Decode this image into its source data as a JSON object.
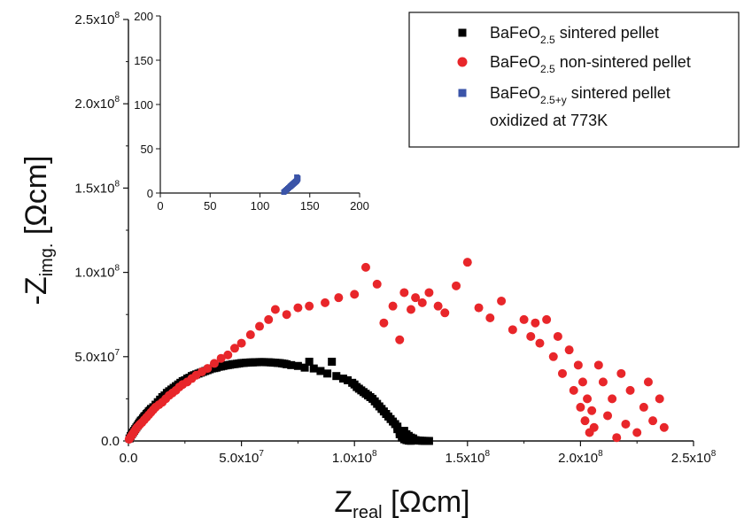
{
  "chart_data": [
    {
      "type": "scatter",
      "title": "",
      "xlabel": "Z_real [Ωcm]",
      "ylabel": "-Z_img. [Ωcm]",
      "xlabel_parts": {
        "main": "Z",
        "sub": "real",
        "unit": " [Ωcm]"
      },
      "ylabel_parts": {
        "main": "-Z",
        "sub": "img.",
        "unit": " [Ωcm]"
      },
      "xlim": [
        0,
        250000000
      ],
      "ylim": [
        0,
        250000000
      ],
      "x_ticks": [
        0,
        50000000,
        100000000,
        150000000,
        200000000,
        250000000
      ],
      "y_ticks": [
        0,
        50000000,
        100000000,
        150000000,
        200000000,
        250000000
      ],
      "x_tick_labels": [
        {
          "mant": "0.0",
          "exp": ""
        },
        {
          "mant": "5.0x10",
          "exp": "7"
        },
        {
          "mant": "1.0x10",
          "exp": "8"
        },
        {
          "mant": "1.5x10",
          "exp": "8"
        },
        {
          "mant": "2.0x10",
          "exp": "8"
        },
        {
          "mant": "2.5x10",
          "exp": "8"
        }
      ],
      "y_tick_labels": [
        {
          "mant": "0.0",
          "exp": ""
        },
        {
          "mant": "5.0x10",
          "exp": "7"
        },
        {
          "mant": "1.0x10",
          "exp": "8"
        },
        {
          "mant": "1.5x10",
          "exp": "8"
        },
        {
          "mant": "2.0x10",
          "exp": "8"
        },
        {
          "mant": "2.5x10",
          "exp": "8"
        }
      ],
      "grid": false,
      "legend_position": "top-right",
      "legend": [
        {
          "series": "sintered",
          "pre": "BaFeO",
          "sub": "2.5",
          "post": " sintered pellet",
          "line2": ""
        },
        {
          "series": "non_sintered",
          "pre": "BaFeO",
          "sub": "2.5",
          "post": " non-sintered pellet",
          "line2": ""
        },
        {
          "series": "oxidized",
          "pre": "BaFeO",
          "sub": "2.5+y",
          "post": " sintered pellet",
          "line2": "oxidized at 773K"
        }
      ],
      "series": [
        {
          "key": "sintered",
          "name": "BaFeO2.5 sintered pellet",
          "color": "#000000",
          "marker": "square",
          "x": [
            500000,
            1000000,
            1500000,
            2000000,
            2500000,
            3000000,
            3500000,
            4000000,
            4500000,
            5000000,
            5500000,
            6000000,
            6500000,
            7000000,
            7500000,
            8000000,
            8500000,
            9000000,
            9500000,
            10000000,
            11000000,
            12000000,
            13000000,
            14000000,
            15000000,
            16000000,
            17000000,
            18000000,
            19000000,
            20000000,
            21000000,
            22000000,
            23000000,
            24000000,
            25000000,
            26000000,
            27000000,
            28000000,
            29000000,
            30000000,
            31000000,
            32000000,
            33000000,
            34000000,
            35000000,
            36000000,
            37000000,
            38000000,
            39000000,
            40000000,
            41000000,
            42000000,
            43000000,
            44000000,
            45000000,
            46000000,
            47000000,
            48000000,
            49000000,
            50000000,
            51000000,
            52000000,
            53000000,
            54000000,
            55000000,
            56000000,
            57000000,
            58000000,
            59000000,
            60000000,
            61000000,
            62000000,
            63000000,
            64000000,
            65000000,
            66000000,
            67000000,
            68000000,
            69000000,
            70000000,
            72000000,
            75000000,
            78000000,
            80000000,
            82000000,
            85000000,
            88000000,
            90000000,
            92000000,
            95000000,
            97000000,
            99000000,
            100000000,
            101000000,
            102000000,
            103000000,
            104000000,
            105000000,
            106000000,
            107000000,
            108000000,
            109000000,
            110000000,
            111000000,
            112000000,
            113000000,
            114000000,
            115000000,
            116000000,
            117000000,
            118000000,
            119000000,
            119000000,
            120000000,
            120000000,
            121000000,
            121000000,
            122000000,
            122000000,
            123000000,
            123000000,
            124000000,
            124000000,
            125000000,
            125000000,
            126000000,
            126000000,
            127000000,
            128000000,
            129000000,
            130000000,
            131000000,
            132000000,
            133000000
          ],
          "y": [
            1500000,
            3000000,
            4000000,
            5000000,
            6000000,
            7000000,
            8000000,
            9000000,
            10000000,
            11000000,
            12000000,
            12500000,
            13500000,
            14500000,
            15000000,
            16000000,
            16500000,
            17500000,
            18000000,
            19000000,
            20000000,
            21500000,
            23000000,
            24500000,
            26000000,
            27000000,
            28500000,
            29500000,
            30500000,
            31500000,
            32500000,
            33500000,
            34500000,
            35500000,
            36000000,
            37000000,
            37500000,
            38500000,
            39000000,
            39500000,
            40000000,
            40500000,
            41000000,
            41500000,
            42000000,
            42500000,
            43000000,
            43200000,
            43500000,
            44000000,
            44200000,
            44500000,
            44800000,
            45000000,
            45200000,
            45500000,
            45600000,
            45800000,
            46000000,
            46200000,
            46300000,
            46400000,
            46500000,
            46600000,
            46600000,
            46700000,
            46700000,
            46800000,
            46800000,
            46800000,
            46700000,
            46700000,
            46600000,
            46500000,
            46400000,
            46300000,
            46200000,
            46000000,
            45800000,
            45500000,
            45000000,
            44500000,
            43500000,
            47000000,
            43000000,
            41500000,
            40000000,
            47000000,
            38500000,
            37000000,
            36000000,
            34500000,
            33500000,
            32000000,
            31000000,
            30000000,
            29000000,
            28000000,
            27000000,
            26000000,
            25000000,
            23500000,
            22000000,
            20500000,
            19000000,
            17500000,
            16000000,
            14500000,
            13000000,
            11500000,
            10000000,
            8500000,
            7000000,
            5500000,
            4000000,
            3000000,
            2000000,
            6000000,
            1000000,
            4000000,
            500000,
            3000000,
            200000,
            2000000,
            100000,
            1500000,
            800000,
            500000,
            300000,
            200000,
            100000,
            50000,
            30000,
            10000
          ],
          "hidden": false
        },
        {
          "key": "non_sintered",
          "name": "BaFeO2.5 non-sintered pellet",
          "color": "#e8262a",
          "marker": "circle",
          "x": [
            300000,
            800000,
            1300000,
            1800000,
            2300000,
            2800000,
            3300000,
            3800000,
            4500000,
            5200000,
            6000000,
            7000000,
            8000000,
            9000000,
            10000000,
            11000000,
            12000000,
            13500000,
            15000000,
            16500000,
            18000000,
            19500000,
            21000000,
            22500000,
            24000000,
            26000000,
            28000000,
            30000000,
            32500000,
            35000000,
            38000000,
            41000000,
            44000000,
            47000000,
            50000000,
            54000000,
            58000000,
            62000000,
            65000000,
            70000000,
            75000000,
            80000000,
            87000000,
            93000000,
            100000000,
            105000000,
            110000000,
            113000000,
            117000000,
            120000000,
            122000000,
            125000000,
            127000000,
            130000000,
            133000000,
            137000000,
            140000000,
            145000000,
            150000000,
            155000000,
            160000000,
            165000000,
            170000000,
            175000000,
            178000000,
            180000000,
            182000000,
            185000000,
            188000000,
            190000000,
            192000000,
            195000000,
            197000000,
            199000000,
            200000000,
            201000000,
            202000000,
            203000000,
            204000000,
            205000000,
            206000000,
            208000000,
            210000000,
            212000000,
            214000000,
            216000000,
            218000000,
            220000000,
            222000000,
            225000000,
            228000000,
            230000000,
            232000000,
            235000000,
            237000000
          ],
          "y": [
            1000000,
            2000000,
            3000000,
            4000000,
            5000000,
            6000000,
            7000000,
            8000000,
            9000000,
            10000000,
            11000000,
            12500000,
            14000000,
            15500000,
            17000000,
            18500000,
            20000000,
            21500000,
            23000000,
            25000000,
            27000000,
            28500000,
            30000000,
            32000000,
            33500000,
            35000000,
            37000000,
            39000000,
            41000000,
            43000000,
            46000000,
            49000000,
            51000000,
            55000000,
            58000000,
            63000000,
            68000000,
            72000000,
            78000000,
            75000000,
            79000000,
            80000000,
            82000000,
            85000000,
            87000000,
            103000000,
            93000000,
            70000000,
            80000000,
            60000000,
            88000000,
            78000000,
            85000000,
            82000000,
            88000000,
            80000000,
            76000000,
            92000000,
            106000000,
            79000000,
            73000000,
            83000000,
            66000000,
            72000000,
            62000000,
            70000000,
            58000000,
            72000000,
            50000000,
            62000000,
            40000000,
            54000000,
            30000000,
            45000000,
            20000000,
            35000000,
            12000000,
            25000000,
            5000000,
            18000000,
            8000000,
            45000000,
            35000000,
            15000000,
            25000000,
            2000000,
            40000000,
            10000000,
            30000000,
            5000000,
            20000000,
            35000000,
            12000000,
            25000000,
            8000000
          ],
          "hidden": false
        },
        {
          "key": "oxidized",
          "name": "BaFeO2.5+y sintered pellet oxidized at 773K",
          "color": "#3b54a8",
          "marker": "square",
          "x": [],
          "y": [],
          "hidden": true
        }
      ]
    },
    {
      "type": "scatter",
      "title": "",
      "xlabel": "",
      "ylabel": "",
      "xlim": [
        0,
        200
      ],
      "ylim": [
        0,
        200
      ],
      "x_ticks": [
        0,
        50,
        100,
        150,
        200
      ],
      "y_ticks": [
        0,
        50,
        100,
        150,
        200
      ],
      "x_tick_labels": [
        "0",
        "50",
        "100",
        "150",
        "200"
      ],
      "y_tick_labels": [
        "0",
        "50",
        "100",
        "150",
        "200"
      ],
      "grid": false,
      "series": [
        {
          "key": "oxidized_inset",
          "name": "BaFeO2.5+y sintered pellet oxidized at 773K",
          "color": "#3b54a8",
          "marker": "square",
          "x": [
            124,
            125,
            126,
            127,
            128,
            129,
            130,
            130.5,
            131,
            131.5,
            132,
            132.5,
            133,
            133.5,
            134,
            134.5,
            135,
            135.5,
            136,
            136.5,
            137,
            137.5,
            138,
            138,
            137
          ],
          "y": [
            1,
            2,
            3,
            4,
            5,
            6,
            7,
            7.5,
            8,
            8.5,
            9,
            9.5,
            10,
            10.5,
            11,
            11.5,
            12,
            12.5,
            13,
            13.5,
            14,
            15,
            16,
            17,
            18
          ]
        }
      ]
    }
  ]
}
